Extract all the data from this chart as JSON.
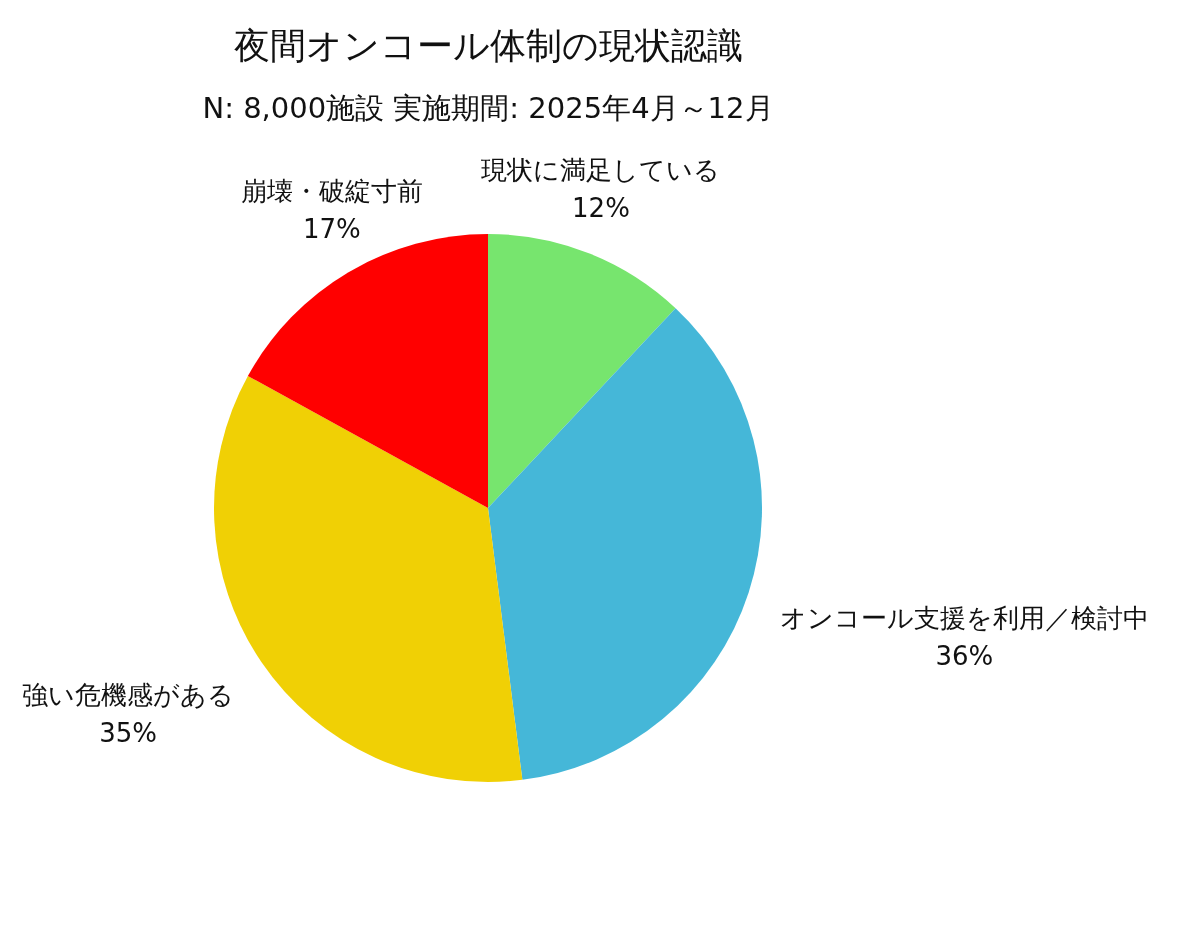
{
  "chart_data": {
    "type": "pie",
    "title": "夜間オンコール体制の現状認識",
    "subtitle": "N: 8,000施設 実施期間: 2025年4月～12月",
    "categories": [
      "現状に満足している",
      "オンコール支援を利用／検討中",
      "強い危機感がある",
      "崩壊・破綻寸前"
    ],
    "values": [
      12,
      36,
      35,
      17
    ],
    "value_labels": [
      "12%",
      "36%",
      "35%",
      "17%"
    ],
    "colors": [
      "#77e56e",
      "#45b7d8",
      "#f0d005",
      "#ff0000"
    ]
  }
}
